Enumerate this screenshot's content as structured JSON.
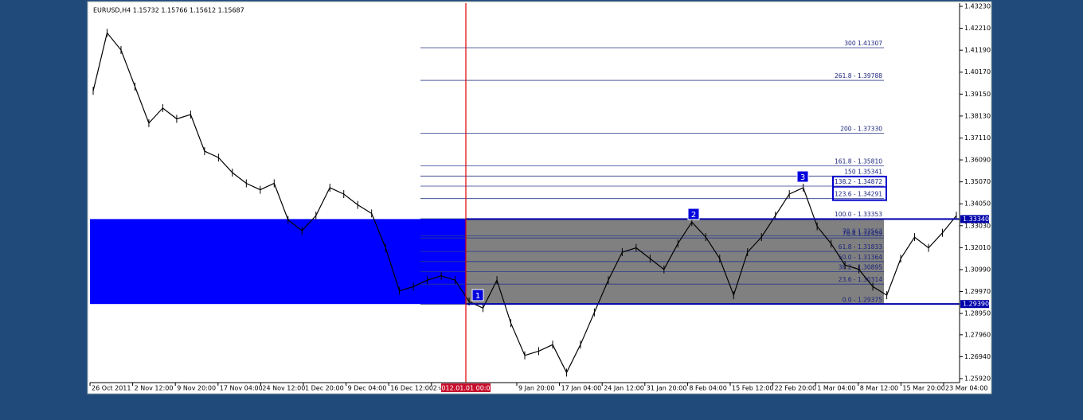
{
  "header": "EURUSD,H4  1.15732 1.15766 1.15612 1.15687",
  "price_axis": {
    "lim": [
      1.2592,
      1.4323
    ],
    "ticks": [
      {
        "value": 1.4323,
        "label": "1.43230"
      },
      {
        "value": 1.4221,
        "label": "1.42210"
      },
      {
        "value": 1.4119,
        "label": "1.41190"
      },
      {
        "value": 1.4017,
        "label": "1.40170"
      },
      {
        "value": 1.3915,
        "label": "1.39150"
      },
      {
        "value": 1.3813,
        "label": "1.38130"
      },
      {
        "value": 1.3711,
        "label": "1.37110"
      },
      {
        "value": 1.3609,
        "label": "1.36090"
      },
      {
        "value": 1.3507,
        "label": "1.35070"
      },
      {
        "value": 1.3405,
        "label": "1.34050"
      },
      {
        "value": 1.3303,
        "label": "1.33030"
      },
      {
        "value": 1.3201,
        "label": "1.32010"
      },
      {
        "value": 1.3099,
        "label": "1.30990"
      },
      {
        "value": 1.2997,
        "label": "1.29970"
      },
      {
        "value": 1.2895,
        "label": "1.28950"
      },
      {
        "value": 1.2796,
        "label": "1.27960"
      },
      {
        "value": 1.2694,
        "label": "1.26940"
      },
      {
        "value": 1.2592,
        "label": "1.25920"
      }
    ]
  },
  "time_labels": [
    "26 Oct 2011",
    "2 Nov 12:00",
    "9 Nov 20:00",
    "17 Nov 04:00",
    "24 Nov 12:00",
    "1 Dec 20:00",
    "9 Dec 04:00",
    "16 Dec 12:00",
    "23 D",
    "2012.01.01 00:00",
    "9 Jan 20:00",
    "17 Jan 04:00",
    "24 Jan 12:00",
    "31 Jan 20:00",
    "8 Feb 04:00",
    "15 Feb 12:00",
    "22 Feb 20:00",
    "1 Mar 04:00",
    "8 Mar 12:00",
    "15 Mar 20:00",
    "23 Mar 04:00"
  ],
  "fib_levels": [
    {
      "value": 1.41307,
      "label": "300 1.41307"
    },
    {
      "value": 1.39788,
      "label": "261.8 - 1.39788"
    },
    {
      "value": 1.3733,
      "label": "200 - 1.37330"
    },
    {
      "value": 1.3581,
      "label": "161.8 - 1.35810"
    },
    {
      "value": 1.35341,
      "label": "150 1.35341"
    },
    {
      "value": 1.34872,
      "label": "138.2 - 1.34872"
    },
    {
      "value": 1.34291,
      "label": "123.6 - 1.34291"
    },
    {
      "value": 1.33353,
      "label": "100.0 - 1.33353"
    },
    {
      "value": 1.32563,
      "label": "78.6 1.32563"
    },
    {
      "value": 1.32459,
      "label": "76.4 1.32459"
    },
    {
      "value": 1.31833,
      "label": "61.8 - 1.31833"
    },
    {
      "value": 1.31364,
      "label": "50.0 - 1.31364"
    },
    {
      "value": 1.30895,
      "label": "38.2 - 1.30895"
    },
    {
      "value": 1.30314,
      "label": "23.6 - 1.30314"
    },
    {
      "value": 1.29375,
      "label": "0.0 - 1.29375"
    }
  ],
  "levels": [
    {
      "value": 1.3334,
      "label": "1.33340"
    },
    {
      "value": 1.2939,
      "label": "1.29390"
    }
  ],
  "wave_labels": [
    "1",
    "2",
    "3"
  ],
  "closes": [
    1.393,
    1.42,
    1.412,
    1.395,
    1.378,
    1.385,
    1.38,
    1.382,
    1.365,
    1.362,
    1.355,
    1.35,
    1.347,
    1.35,
    1.333,
    1.328,
    1.335,
    1.348,
    1.345,
    1.34,
    1.336,
    1.32,
    1.3,
    1.302,
    1.305,
    1.307,
    1.305,
    1.295,
    1.292,
    1.305,
    1.285,
    1.27,
    1.272,
    1.275,
    1.262,
    1.275,
    1.29,
    1.305,
    1.318,
    1.32,
    1.315,
    1.31,
    1.322,
    1.332,
    1.325,
    1.315,
    1.298,
    1.318,
    1.325,
    1.335,
    1.345,
    1.348,
    1.33,
    1.322,
    1.312,
    1.31,
    1.302,
    1.298,
    1.315,
    1.325,
    1.32,
    1.327,
    1.335
  ]
}
